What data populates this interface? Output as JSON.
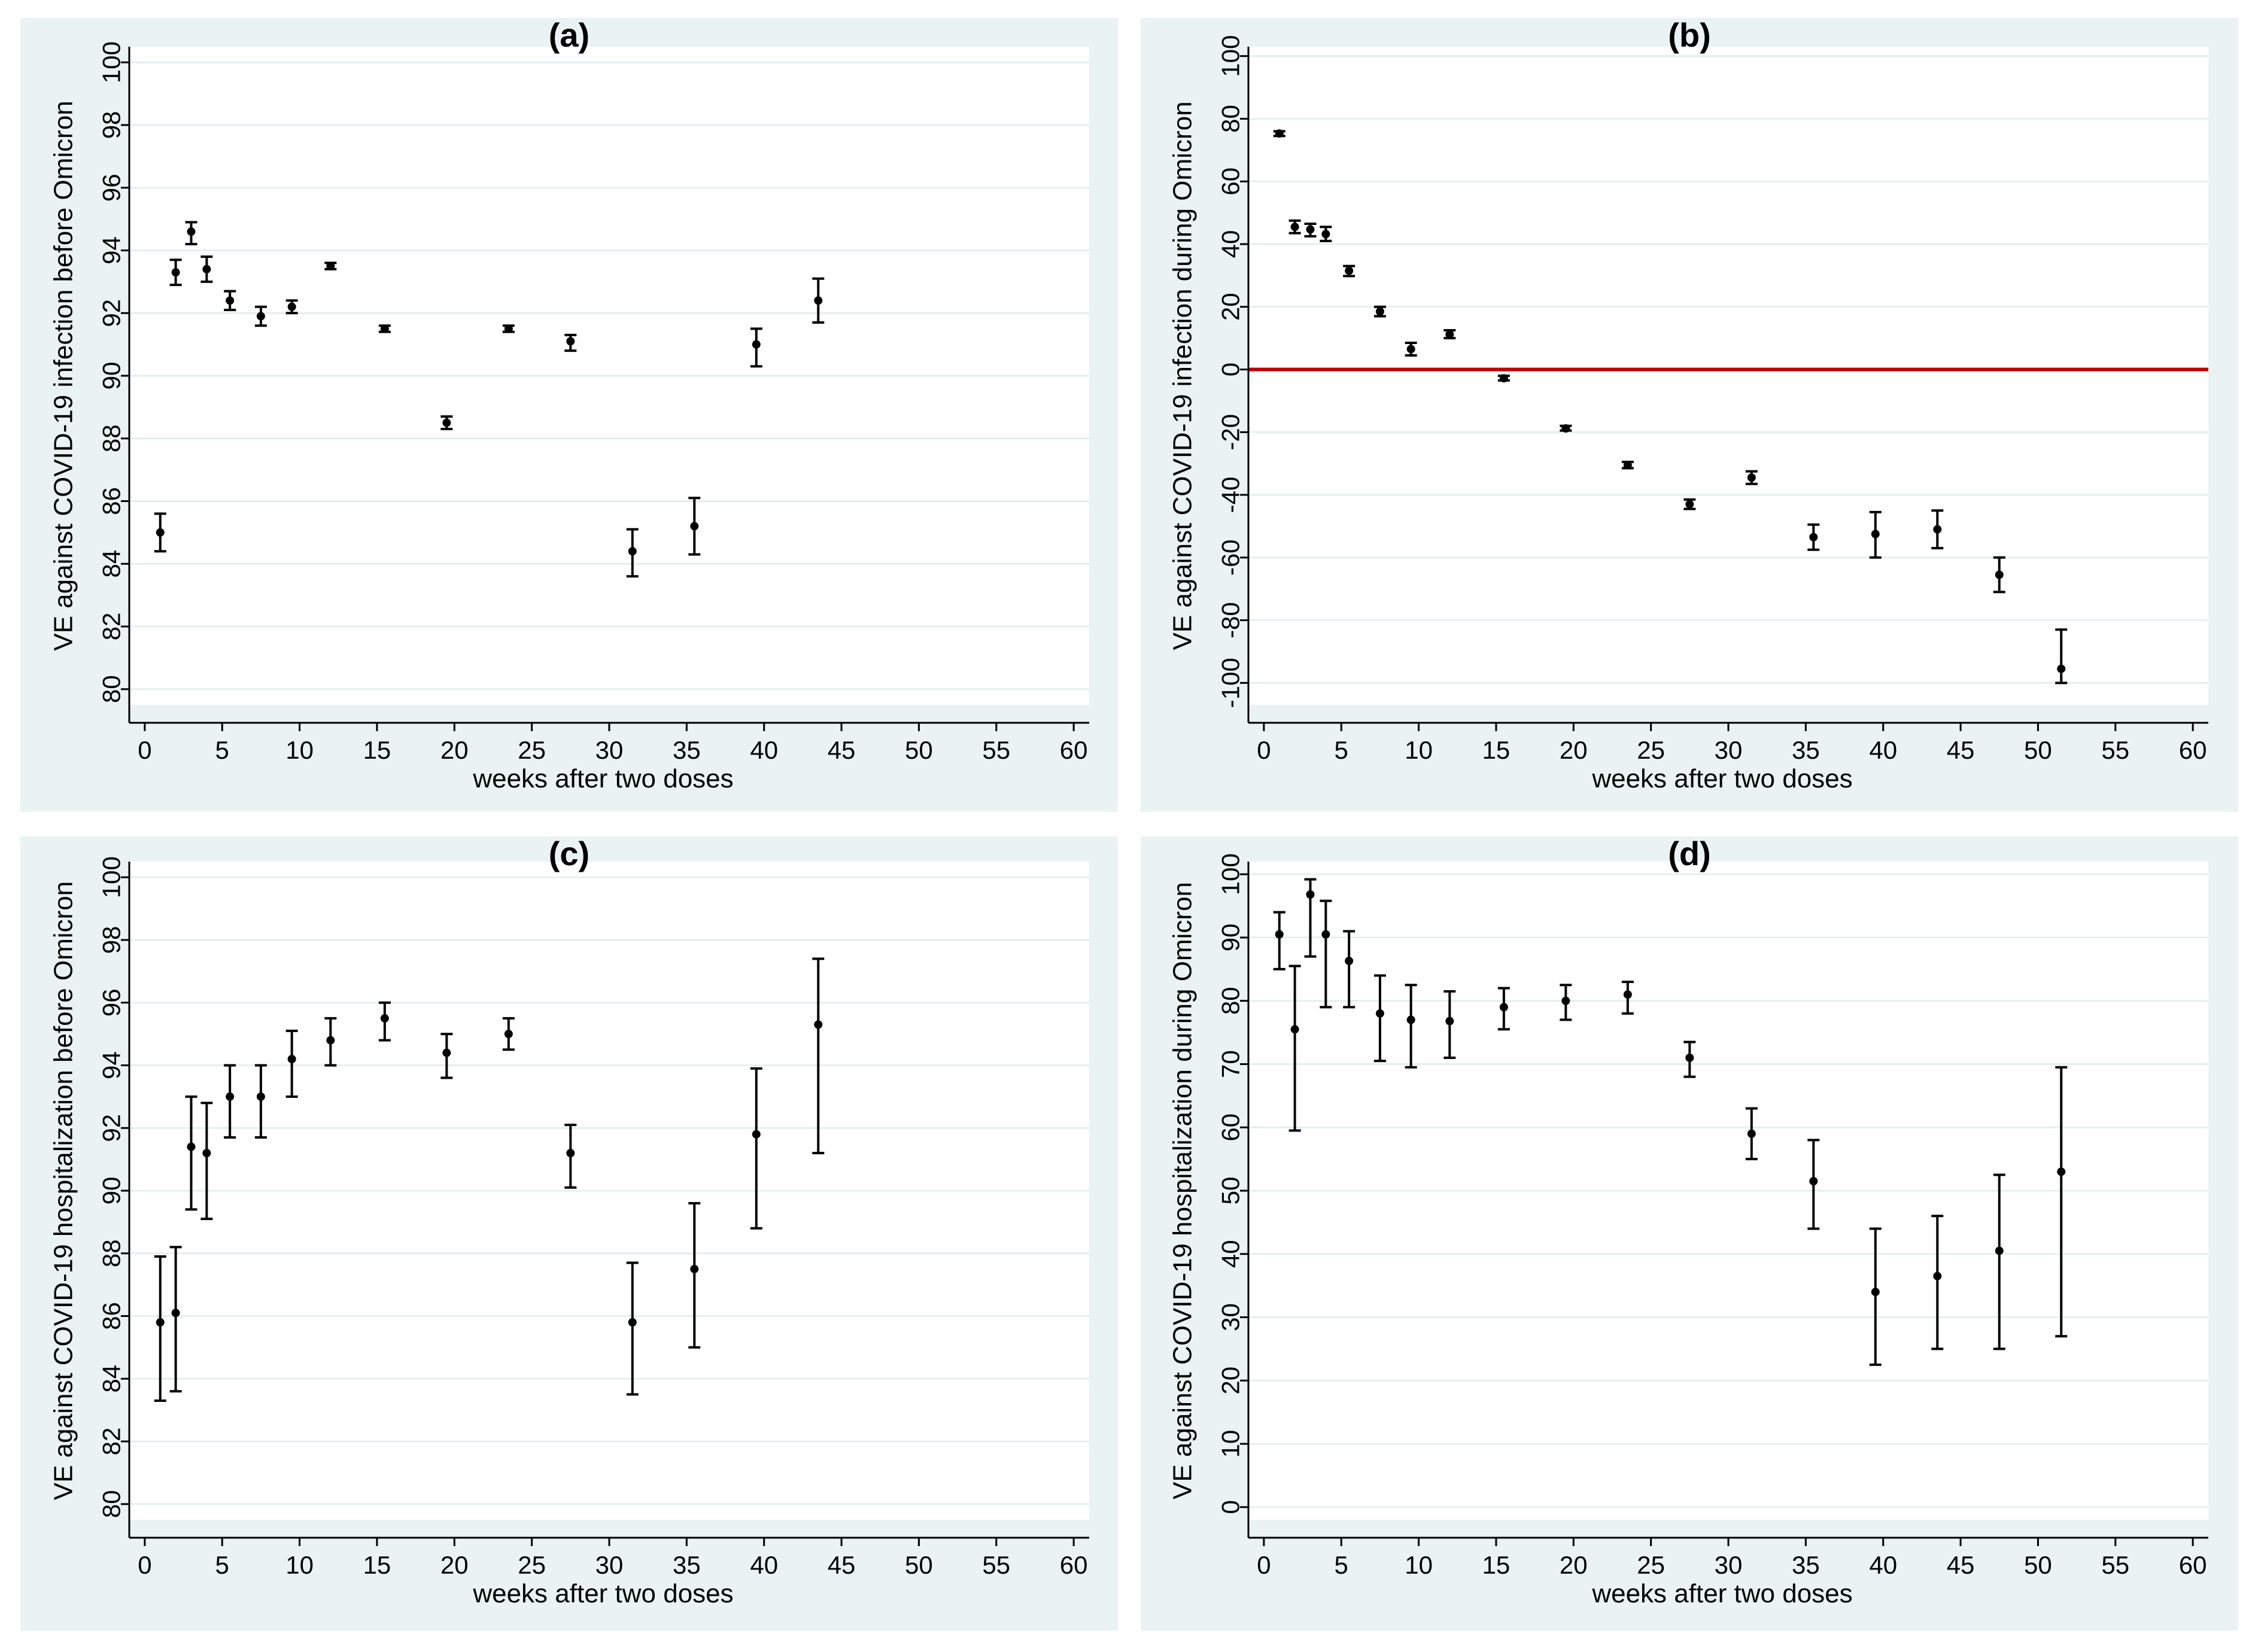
{
  "colors": {
    "panel_background": "#eaf2f3",
    "plot_background": "#ffffff",
    "grid": "#e6eef0",
    "reference_line": "#c00000",
    "marker": "#000000"
  },
  "chart_data": [
    {
      "type": "scatter",
      "title": "(a)",
      "xlabel": "weeks after two doses",
      "ylabel": "VE against COVID-19 infection before Omicron",
      "xlim": [
        -1,
        61
      ],
      "ylim": [
        79.5,
        100.5
      ],
      "xticks": [
        "0",
        "5",
        "10",
        "15",
        "20",
        "25",
        "30",
        "35",
        "40",
        "45",
        "50",
        "55",
        "60"
      ],
      "yticks": [
        "80",
        "82",
        "84",
        "86",
        "88",
        "90",
        "92",
        "94",
        "96",
        "98",
        "100"
      ],
      "reference_line": null,
      "points": [
        {
          "x": 1,
          "y": 85.0,
          "lo": 84.4,
          "hi": 85.6
        },
        {
          "x": 2,
          "y": 93.3,
          "lo": 92.9,
          "hi": 93.7
        },
        {
          "x": 3,
          "y": 94.6,
          "lo": 94.2,
          "hi": 94.9
        },
        {
          "x": 4,
          "y": 93.4,
          "lo": 93.0,
          "hi": 93.8
        },
        {
          "x": 5.5,
          "y": 92.4,
          "lo": 92.1,
          "hi": 92.7
        },
        {
          "x": 7.5,
          "y": 91.9,
          "lo": 91.6,
          "hi": 92.2
        },
        {
          "x": 9.5,
          "y": 92.2,
          "lo": 92.0,
          "hi": 92.4
        },
        {
          "x": 12,
          "y": 93.5,
          "lo": 93.4,
          "hi": 93.6
        },
        {
          "x": 15.5,
          "y": 91.5,
          "lo": 91.4,
          "hi": 91.6
        },
        {
          "x": 19.5,
          "y": 88.5,
          "lo": 88.3,
          "hi": 88.7
        },
        {
          "x": 23.5,
          "y": 91.5,
          "lo": 91.4,
          "hi": 91.6
        },
        {
          "x": 27.5,
          "y": 91.1,
          "lo": 90.8,
          "hi": 91.3
        },
        {
          "x": 31.5,
          "y": 84.4,
          "lo": 83.6,
          "hi": 85.1
        },
        {
          "x": 35.5,
          "y": 85.2,
          "lo": 84.3,
          "hi": 86.1
        },
        {
          "x": 39.5,
          "y": 91.0,
          "lo": 90.3,
          "hi": 91.5
        },
        {
          "x": 43.5,
          "y": 92.4,
          "lo": 91.7,
          "hi": 93.1
        }
      ]
    },
    {
      "type": "scatter",
      "title": "(b)",
      "xlabel": "weeks after two doses",
      "ylabel": "VE against COVID-19 infection during Omicron",
      "xlim": [
        -1,
        61
      ],
      "ylim": [
        -107,
        103
      ],
      "xticks": [
        "0",
        "5",
        "10",
        "15",
        "20",
        "25",
        "30",
        "35",
        "40",
        "45",
        "50",
        "55",
        "60"
      ],
      "yticks": [
        "-100",
        "-80",
        "-60",
        "-40",
        "-20",
        "0",
        "20",
        "40",
        "60",
        "80",
        "100"
      ],
      "reference_line": 0,
      "points": [
        {
          "x": 1,
          "y": 75.3,
          "lo": 74.5,
          "hi": 76.0
        },
        {
          "x": 2,
          "y": 45.5,
          "lo": 43.5,
          "hi": 47.5
        },
        {
          "x": 3,
          "y": 44.7,
          "lo": 42.5,
          "hi": 46.5
        },
        {
          "x": 4,
          "y": 43.2,
          "lo": 41.0,
          "hi": 45.5
        },
        {
          "x": 5.5,
          "y": 31.5,
          "lo": 29.8,
          "hi": 33.0
        },
        {
          "x": 7.5,
          "y": 18.5,
          "lo": 17.0,
          "hi": 20.0
        },
        {
          "x": 9.5,
          "y": 6.5,
          "lo": 4.5,
          "hi": 8.5
        },
        {
          "x": 12,
          "y": 11.2,
          "lo": 10.0,
          "hi": 12.5
        },
        {
          "x": 15.5,
          "y": -2.8,
          "lo": -3.5,
          "hi": -2.0
        },
        {
          "x": 19.5,
          "y": -18.8,
          "lo": -19.5,
          "hi": -18.0
        },
        {
          "x": 23.5,
          "y": -30.5,
          "lo": -31.5,
          "hi": -29.5
        },
        {
          "x": 27.5,
          "y": -43.0,
          "lo": -44.5,
          "hi": -41.5
        },
        {
          "x": 31.5,
          "y": -34.5,
          "lo": -36.5,
          "hi": -32.5
        },
        {
          "x": 35.5,
          "y": -53.5,
          "lo": -57.5,
          "hi": -49.5
        },
        {
          "x": 39.5,
          "y": -52.5,
          "lo": -60.0,
          "hi": -45.5
        },
        {
          "x": 43.5,
          "y": -51.0,
          "lo": -57.0,
          "hi": -45.0
        },
        {
          "x": 47.5,
          "y": -65.5,
          "lo": -71.0,
          "hi": -60.0
        },
        {
          "x": 51.5,
          "y": -95.5,
          "lo": -100.0,
          "hi": -83.0
        }
      ]
    },
    {
      "type": "scatter",
      "title": "(c)",
      "xlabel": "weeks after two doses",
      "ylabel": "VE against COVID-19 hospitalization before Omicron",
      "xlim": [
        -1,
        61
      ],
      "ylim": [
        79.5,
        100.5
      ],
      "xticks": [
        "0",
        "5",
        "10",
        "15",
        "20",
        "25",
        "30",
        "35",
        "40",
        "45",
        "50",
        "55",
        "60"
      ],
      "yticks": [
        "80",
        "82",
        "84",
        "86",
        "88",
        "90",
        "92",
        "94",
        "96",
        "98",
        "100"
      ],
      "reference_line": null,
      "points": [
        {
          "x": 1,
          "y": 85.8,
          "lo": 83.3,
          "hi": 87.9
        },
        {
          "x": 2,
          "y": 86.1,
          "lo": 83.6,
          "hi": 88.2
        },
        {
          "x": 3,
          "y": 91.4,
          "lo": 89.4,
          "hi": 93.0
        },
        {
          "x": 4,
          "y": 91.2,
          "lo": 89.1,
          "hi": 92.8
        },
        {
          "x": 5.5,
          "y": 93.0,
          "lo": 91.7,
          "hi": 94.0
        },
        {
          "x": 7.5,
          "y": 93.0,
          "lo": 91.7,
          "hi": 94.0
        },
        {
          "x": 9.5,
          "y": 94.2,
          "lo": 93.0,
          "hi": 95.1
        },
        {
          "x": 12,
          "y": 94.8,
          "lo": 94.0,
          "hi": 95.5
        },
        {
          "x": 15.5,
          "y": 95.5,
          "lo": 94.8,
          "hi": 96.0
        },
        {
          "x": 19.5,
          "y": 94.4,
          "lo": 93.6,
          "hi": 95.0
        },
        {
          "x": 23.5,
          "y": 95.0,
          "lo": 94.5,
          "hi": 95.5
        },
        {
          "x": 27.5,
          "y": 91.2,
          "lo": 90.1,
          "hi": 92.1
        },
        {
          "x": 31.5,
          "y": 85.8,
          "lo": 83.5,
          "hi": 87.7
        },
        {
          "x": 35.5,
          "y": 87.5,
          "lo": 85.0,
          "hi": 89.6
        },
        {
          "x": 39.5,
          "y": 91.8,
          "lo": 88.8,
          "hi": 93.9
        },
        {
          "x": 43.5,
          "y": 95.3,
          "lo": 91.2,
          "hi": 97.4
        }
      ]
    },
    {
      "type": "scatter",
      "title": "(d)",
      "xlabel": "weeks after two doses",
      "ylabel": "VE against COVID-19 hospitalization during Omicron",
      "xlim": [
        -1,
        61
      ],
      "ylim": [
        -2,
        102
      ],
      "xticks": [
        "0",
        "5",
        "10",
        "15",
        "20",
        "25",
        "30",
        "35",
        "40",
        "45",
        "50",
        "55",
        "60"
      ],
      "yticks": [
        "0",
        "10",
        "20",
        "30",
        "40",
        "50",
        "60",
        "70",
        "80",
        "90",
        "100"
      ],
      "reference_line": null,
      "points": [
        {
          "x": 1,
          "y": 90.5,
          "lo": 85.0,
          "hi": 94.0
        },
        {
          "x": 2,
          "y": 75.5,
          "lo": 59.5,
          "hi": 85.5
        },
        {
          "x": 3,
          "y": 96.8,
          "lo": 87.0,
          "hi": 99.2
        },
        {
          "x": 4,
          "y": 90.5,
          "lo": 79.0,
          "hi": 95.8
        },
        {
          "x": 5.5,
          "y": 86.3,
          "lo": 79.0,
          "hi": 91.0
        },
        {
          "x": 7.5,
          "y": 78.0,
          "lo": 70.5,
          "hi": 84.0
        },
        {
          "x": 9.5,
          "y": 77.0,
          "lo": 69.5,
          "hi": 82.5
        },
        {
          "x": 12,
          "y": 76.8,
          "lo": 71.0,
          "hi": 81.5
        },
        {
          "x": 15.5,
          "y": 79.0,
          "lo": 75.5,
          "hi": 82.0
        },
        {
          "x": 19.5,
          "y": 80.0,
          "lo": 77.0,
          "hi": 82.5
        },
        {
          "x": 23.5,
          "y": 81.0,
          "lo": 78.0,
          "hi": 83.0
        },
        {
          "x": 27.5,
          "y": 71.0,
          "lo": 68.0,
          "hi": 73.5
        },
        {
          "x": 31.5,
          "y": 59.0,
          "lo": 55.0,
          "hi": 63.0
        },
        {
          "x": 35.5,
          "y": 51.5,
          "lo": 44.0,
          "hi": 58.0
        },
        {
          "x": 39.5,
          "y": 34.0,
          "lo": 22.5,
          "hi": 44.0
        },
        {
          "x": 43.5,
          "y": 36.5,
          "lo": 25.0,
          "hi": 46.0
        },
        {
          "x": 47.5,
          "y": 40.5,
          "lo": 25.0,
          "hi": 52.5
        },
        {
          "x": 51.5,
          "y": 53.0,
          "lo": 27.0,
          "hi": 69.5
        }
      ]
    }
  ]
}
